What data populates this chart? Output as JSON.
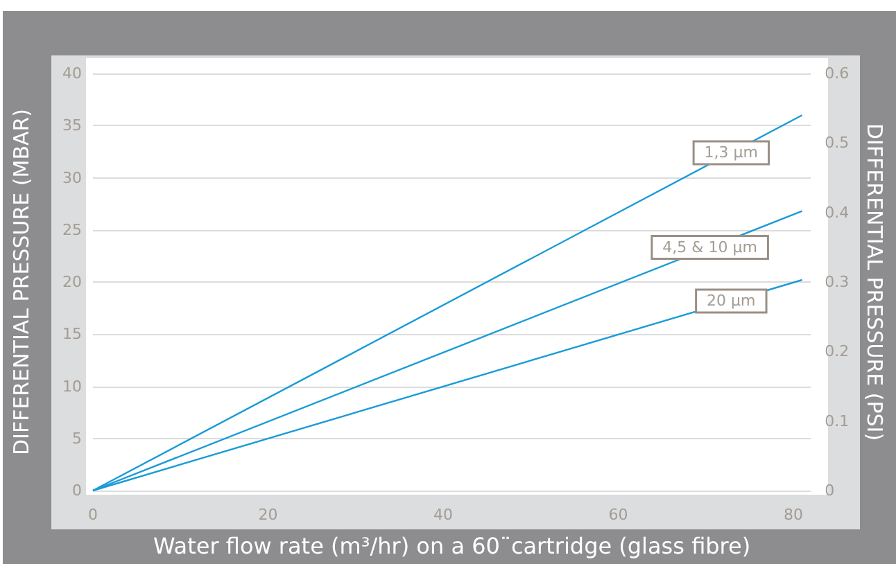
{
  "chart_data": {
    "type": "line",
    "xlabel": "Water flow rate (m³/hr) on a 60¨cartridge (glass fibre)",
    "ylabel": "DIFFERENTIAL PRESSURE (MBAR)",
    "y2label": "DIFFERENTIAL PRESSURE (PSI)",
    "x": [
      0,
      81
    ],
    "series": [
      {
        "color": "#1a9bd7",
        "values": [
          0,
          36
        ]
      },
      {
        "color": "#1a9bd7",
        "values": [
          0,
          26.8
        ]
      },
      {
        "color": "#1a9bd7",
        "values": [
          0,
          20.2
        ]
      }
    ],
    "xlim": [
      0,
      82
    ],
    "xticks": [
      0,
      20,
      40,
      60,
      80
    ],
    "ylim": [
      0,
      40
    ],
    "yticks": [
      0,
      5,
      10,
      15,
      20,
      25,
      30,
      35,
      40
    ],
    "y2lim": [
      0,
      0.6
    ],
    "y2ticks": [
      0,
      0.1,
      0.2,
      0.3,
      0.4,
      0.5,
      0.6
    ],
    "grid": "y",
    "marker": "none",
    "line_style": "solid",
    "annotations": [
      "1,3 µm",
      "4,5 & 10 µm",
      "20 µm"
    ]
  }
}
